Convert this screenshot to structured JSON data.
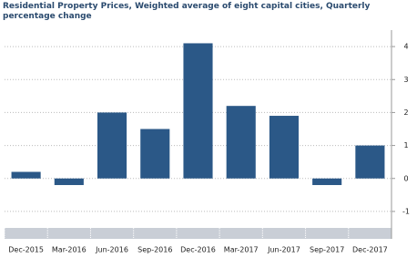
{
  "chart_data": {
    "type": "bar",
    "title": "Residential Property Prices, Weighted average of eight capital cities, Quarterly percentage change",
    "categories": [
      "Dec-2015",
      "Mar-2016",
      "Jun-2016",
      "Sep-2016",
      "Dec-2016",
      "Mar-2017",
      "Jun-2017",
      "Sep-2017",
      "Dec-2017"
    ],
    "values": [
      0.2,
      -0.2,
      2.0,
      1.5,
      4.1,
      2.2,
      1.9,
      -0.2,
      1.0
    ],
    "color": "#2b5887",
    "ylim": [
      -1.5,
      4.5
    ],
    "yticks": [
      -1,
      0,
      1,
      2,
      3,
      4
    ],
    "grid": true
  }
}
